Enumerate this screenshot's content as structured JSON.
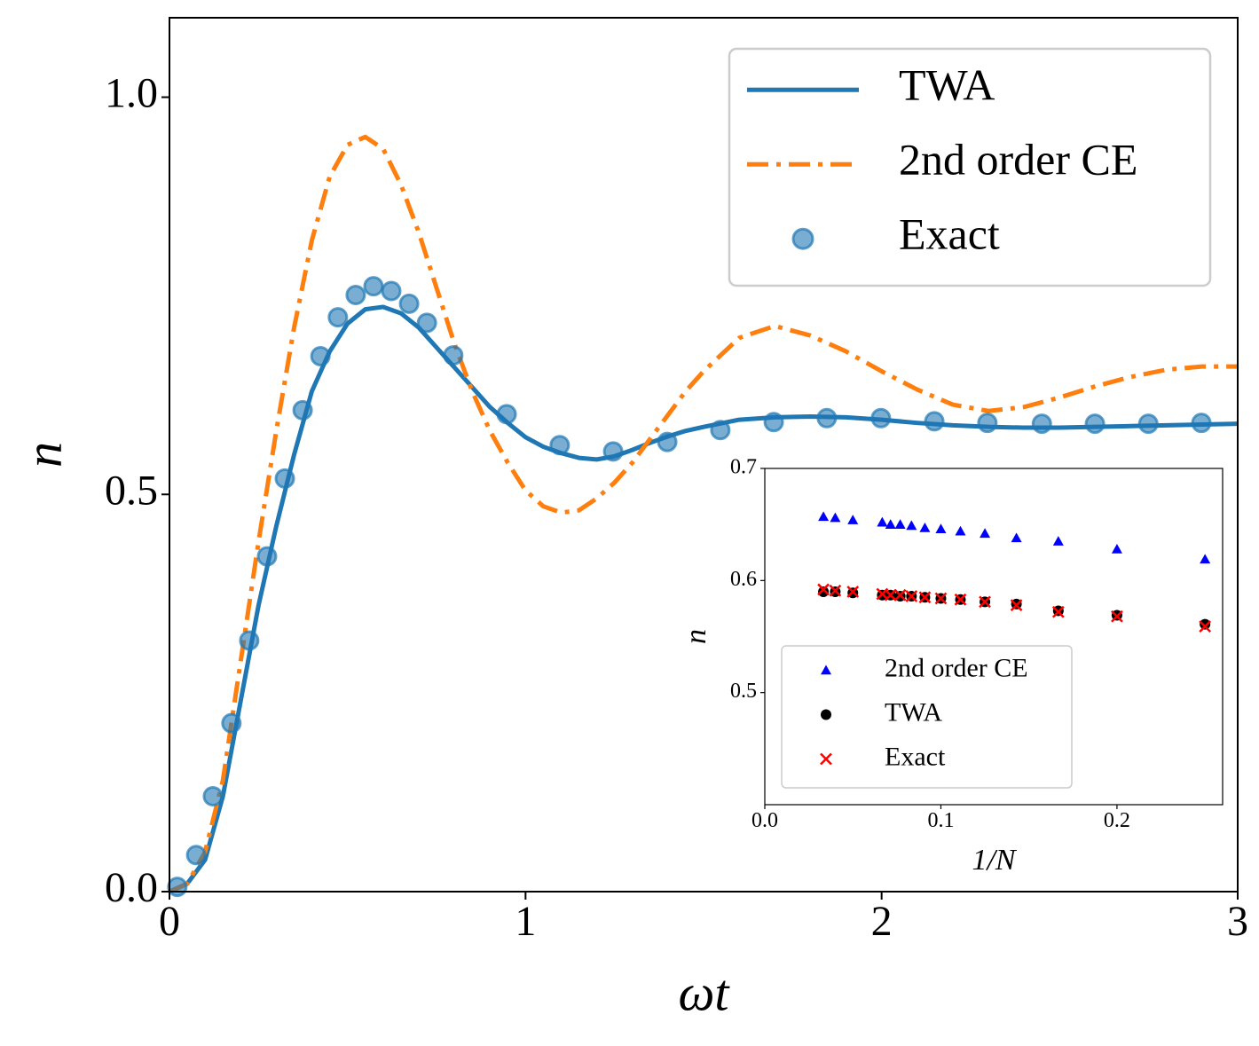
{
  "chart_data": [
    {
      "type": "line",
      "xlabel": "ωt",
      "ylabel": "n",
      "legend": "upper right",
      "xlim": [
        0,
        3
      ],
      "ylim": [
        0,
        1.1
      ],
      "xticks": [
        0,
        1,
        2,
        3
      ],
      "yticks": [
        {
          "value": 0,
          "label": "0.0"
        },
        {
          "value": 0.5,
          "label": "0.5"
        },
        {
          "value": 1.0,
          "label": "1.0"
        }
      ],
      "x": [
        0,
        0.05,
        0.1,
        0.15,
        0.2,
        0.25,
        0.3,
        0.35,
        0.4,
        0.45,
        0.5,
        0.55,
        0.6,
        0.65,
        0.7,
        0.75,
        0.8,
        0.85,
        0.9,
        0.95,
        1.0,
        1.05,
        1.1,
        1.15,
        1.2,
        1.25,
        1.3,
        1.35,
        1.4,
        1.45,
        1.5,
        1.6,
        1.7,
        1.8,
        1.9,
        2.0,
        2.1,
        2.2,
        2.3,
        2.4,
        2.5,
        2.6,
        2.7,
        2.8,
        2.9,
        3.0
      ],
      "series": [
        {
          "name": "TWA",
          "color": "#1f77b4",
          "linestyle": "-",
          "values": [
            0,
            0.01,
            0.04,
            0.12,
            0.24,
            0.36,
            0.46,
            0.55,
            0.63,
            0.68,
            0.715,
            0.733,
            0.736,
            0.728,
            0.71,
            0.685,
            0.66,
            0.635,
            0.61,
            0.59,
            0.572,
            0.56,
            0.552,
            0.546,
            0.544,
            0.548,
            0.556,
            0.565,
            0.573,
            0.58,
            0.585,
            0.594,
            0.597,
            0.598,
            0.597,
            0.594,
            0.59,
            0.587,
            0.585,
            0.584,
            0.584,
            0.585,
            0.586,
            0.587,
            0.588,
            0.589
          ]
        },
        {
          "name": "2nd order CE",
          "color": "#ff7f0e",
          "linestyle": "-.",
          "values": [
            0,
            0.01,
            0.05,
            0.14,
            0.29,
            0.44,
            0.58,
            0.71,
            0.82,
            0.9,
            0.94,
            0.95,
            0.935,
            0.89,
            0.83,
            0.76,
            0.69,
            0.63,
            0.58,
            0.54,
            0.505,
            0.485,
            0.477,
            0.48,
            0.495,
            0.515,
            0.54,
            0.57,
            0.6,
            0.63,
            0.655,
            0.697,
            0.712,
            0.7,
            0.68,
            0.655,
            0.632,
            0.613,
            0.605,
            0.61,
            0.622,
            0.636,
            0.648,
            0.657,
            0.661,
            0.661
          ]
        },
        {
          "name": "Exact",
          "color": "#1f77b4",
          "marker": "o",
          "x": [
            0.022,
            0.075,
            0.122,
            0.174,
            0.224,
            0.274,
            0.324,
            0.374,
            0.424,
            0.473,
            0.523,
            0.573,
            0.623,
            0.673,
            0.723,
            0.797,
            0.947,
            1.096,
            1.246,
            1.398,
            1.547,
            1.697,
            1.846,
            1.998,
            2.148,
            2.297,
            2.45,
            2.599,
            2.749,
            2.898
          ],
          "values": [
            0.006,
            0.046,
            0.12,
            0.212,
            0.316,
            0.422,
            0.52,
            0.606,
            0.674,
            0.723,
            0.751,
            0.762,
            0.756,
            0.74,
            0.716,
            0.675,
            0.601,
            0.562,
            0.554,
            0.566,
            0.581,
            0.591,
            0.596,
            0.596,
            0.592,
            0.59,
            0.589,
            0.589,
            0.589,
            0.59
          ]
        }
      ]
    },
    {
      "type": "scatter",
      "xlabel": "1/N",
      "ylabel": "n",
      "legend": "lower left",
      "xlim": [
        0,
        0.26
      ],
      "ylim": [
        0.4,
        0.7
      ],
      "xticks": [
        {
          "value": 0,
          "label": "0.0"
        },
        {
          "value": 0.1,
          "label": "0.1"
        },
        {
          "value": 0.2,
          "label": "0.2"
        }
      ],
      "yticks": [
        {
          "value": 0.5,
          "label": "0.5"
        },
        {
          "value": 0.6,
          "label": "0.6"
        },
        {
          "value": 0.7,
          "label": "0.7"
        }
      ],
      "x": [
        0.0333,
        0.04,
        0.05,
        0.0667,
        0.0714,
        0.0769,
        0.0833,
        0.0909,
        0.1,
        0.1111,
        0.125,
        0.1429,
        0.1667,
        0.2,
        0.25
      ],
      "series": [
        {
          "name": "2nd order CE",
          "color": "#0000ff",
          "marker": "^",
          "values": [
            0.657,
            0.656,
            0.654,
            0.652,
            0.65,
            0.65,
            0.649,
            0.647,
            0.646,
            0.644,
            0.642,
            0.638,
            0.635,
            0.628,
            0.619
          ]
        },
        {
          "name": "TWA",
          "color": "#000000",
          "marker": "o",
          "values": [
            0.59,
            0.59,
            0.589,
            0.587,
            0.587,
            0.586,
            0.586,
            0.585,
            0.584,
            0.583,
            0.581,
            0.579,
            0.573,
            0.569,
            0.561
          ]
        },
        {
          "name": "Exact",
          "color": "#ff0000",
          "marker": "x",
          "values": [
            0.592,
            0.591,
            0.59,
            0.588,
            0.587,
            0.587,
            0.586,
            0.585,
            0.584,
            0.583,
            0.581,
            0.578,
            0.572,
            0.568,
            0.559
          ]
        }
      ]
    }
  ]
}
